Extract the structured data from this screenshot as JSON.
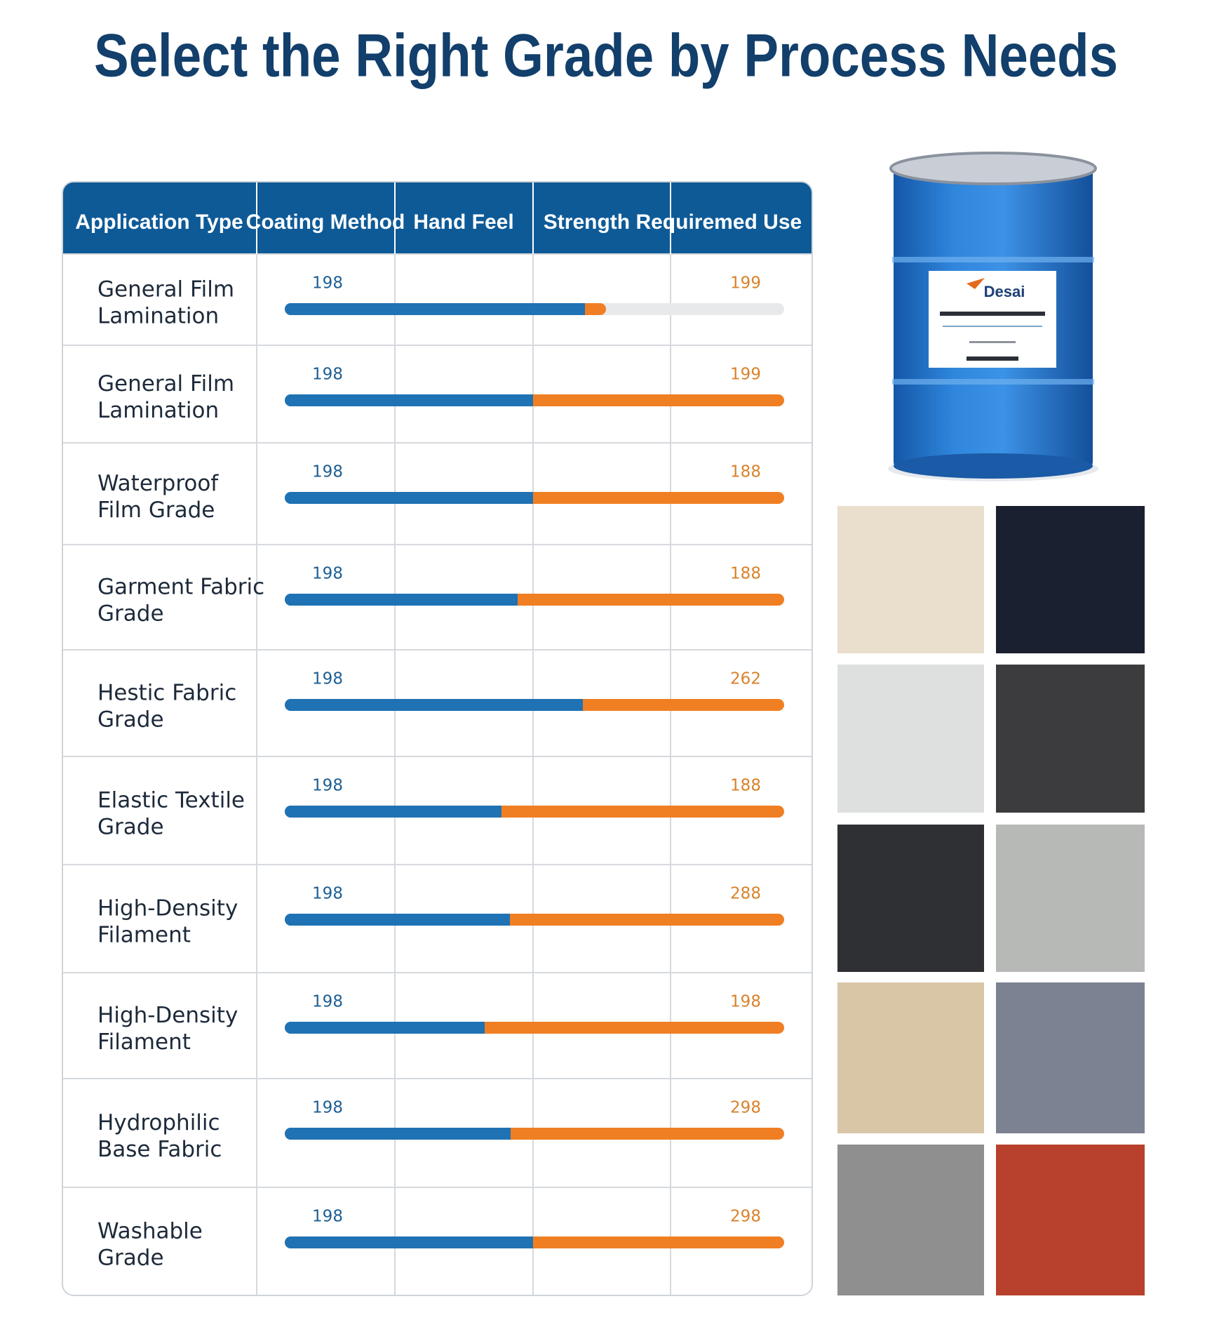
{
  "title": "Select the Right Grade by Process Needs",
  "table": {
    "headers": [
      "Application Type",
      "Coating Method",
      "Hand Feel",
      "Strength Requiremed Use"
    ],
    "rows": [
      {
        "label": [
          "General Film",
          "Lamination"
        ],
        "left": "198",
        "right": "199"
      },
      {
        "label": [
          "General Film",
          "Lamination"
        ],
        "left": "198",
        "right": "199"
      },
      {
        "label": [
          "Waterproof",
          "Film Grade"
        ],
        "left": "198",
        "right": "188"
      },
      {
        "label": [
          "Garment Fabric",
          "Grade"
        ],
        "left": "198",
        "right": "188"
      },
      {
        "label": [
          "Hestic Fabric",
          "Grade"
        ],
        "left": "198",
        "right": "262"
      },
      {
        "label": [
          "Elastic Textile",
          "Grade"
        ],
        "left": "198",
        "right": "188"
      },
      {
        "label": [
          "High-Density",
          "Filament"
        ],
        "left": "198",
        "right": "288"
      },
      {
        "label": [
          "High-Density",
          "Filament"
        ],
        "left": "198",
        "right": "198"
      },
      {
        "label": [
          "Hydrophilic",
          "Base Fabric"
        ],
        "left": "198",
        "right": "298"
      },
      {
        "label": [
          "Washable",
          "Grade"
        ],
        "left": "198",
        "right": "298"
      }
    ]
  },
  "product": {
    "brand": "Desai"
  }
}
